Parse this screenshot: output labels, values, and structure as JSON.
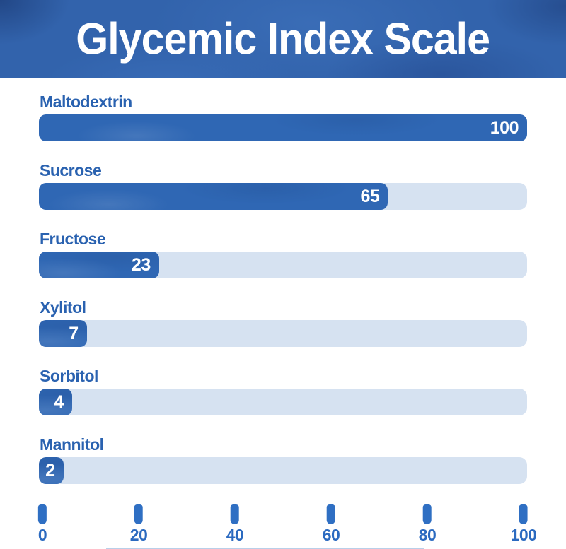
{
  "header": {
    "title": "Glycemic Index Scale"
  },
  "chart_data": {
    "type": "bar",
    "orientation": "horizontal",
    "title": "Glycemic Index Scale",
    "categories": [
      "Maltodextrin",
      "Sucrose",
      "Fructose",
      "Xylitol",
      "Sorbitol",
      "Mannitol"
    ],
    "values": [
      100,
      65,
      23,
      7,
      4,
      2
    ],
    "value_labels": [
      "100",
      "65",
      "23",
      "7",
      "4",
      "2"
    ],
    "xlim": [
      0,
      100
    ],
    "x_ticks": [
      "0",
      "20",
      "40",
      "60",
      "80",
      "100"
    ],
    "bar_display_pct": [
      100,
      71.5,
      24.6,
      9.8,
      6.8,
      5.0
    ],
    "grid": false,
    "legend": false,
    "value_label_position": "inside-end"
  },
  "colors": {
    "header_bg": "#3263ac",
    "title_text": "#ffffff",
    "row_label": "#2a62b0",
    "bar_fill": "#2f67b4",
    "bar_track": "#d6e2f1",
    "bar_value_text": "#ffffff",
    "tick_mark": "#2f6fc3",
    "tick_label": "#2b6ac0",
    "page_bg": "#ffffff"
  }
}
